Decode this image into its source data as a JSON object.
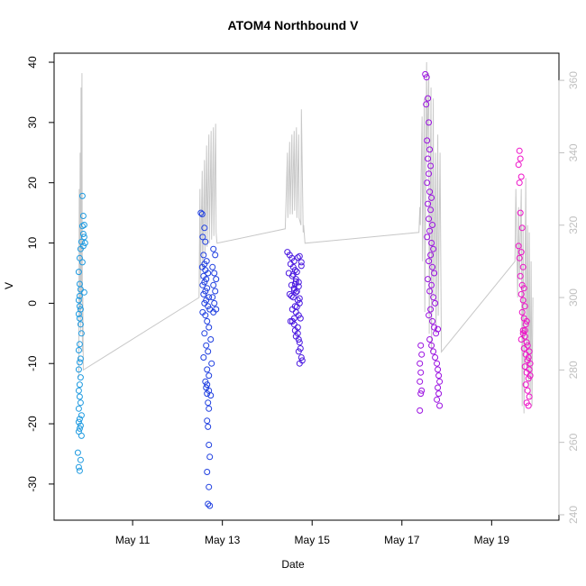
{
  "chart_data": {
    "type": "scatter",
    "title": "ATOM4 Northbound V",
    "xlabel": "Date",
    "ylabel": "V",
    "x_ticks": [
      "May 11",
      "May 13",
      "May 15",
      "May 17",
      "May 19"
    ],
    "x_tick_values": [
      11,
      13,
      15,
      17,
      19
    ],
    "xlim": [
      9.25,
      20.5
    ],
    "ylim": [
      -36,
      41.5
    ],
    "y_ticks": [
      -30,
      -20,
      -10,
      0,
      10,
      20,
      30,
      40
    ],
    "y2_ticks": [
      240,
      260,
      280,
      300,
      320,
      340,
      360
    ],
    "y2lim": [
      238.5,
      367.5
    ],
    "grid": false,
    "legend": "none",
    "colors": {
      "day1": "#1e9ae0",
      "day2": "#1f3fe0",
      "day3": "#4a18e0",
      "day4": "#9a10e0",
      "day5": "#ee10c8",
      "secondary_line": "#c8c8c8",
      "secondary_axis": "#c0c0c0"
    },
    "series": [
      {
        "color_key": "day1",
        "x": [
          9.82,
          9.8,
          9.84,
          9.78,
          9.86,
          9.8,
          9.82,
          9.84,
          9.8,
          9.82,
          9.86,
          9.8,
          9.84,
          9.82,
          9.8,
          9.82,
          9.84,
          9.8,
          9.82,
          9.84,
          9.8,
          9.82,
          9.86,
          9.84,
          9.82,
          9.8,
          9.84,
          9.82,
          9.8,
          9.82,
          9.84,
          9.82,
          9.8,
          9.82,
          9.84,
          9.86,
          9.88,
          9.9,
          9.92,
          9.88,
          9.9,
          9.92,
          9.9,
          9.94,
          9.88,
          9.92
        ],
        "y": [
          -27.8,
          -27.2,
          -26,
          -24.8,
          -22,
          -21.3,
          -20.8,
          -20.3,
          -19.7,
          -19.2,
          -18.6,
          -17.5,
          -16.5,
          -15.5,
          -14.5,
          -13.5,
          -12.3,
          -11,
          -9.8,
          -9.2,
          -7.8,
          -6.8,
          -5,
          -3.5,
          -2.5,
          -1.8,
          -1,
          -0.5,
          0.5,
          1.2,
          2.3,
          3.2,
          5.2,
          7.5,
          9,
          10.2,
          12.8,
          11.5,
          13,
          17.8,
          14.5,
          11,
          9.5,
          10,
          6.8,
          1.8
        ]
      },
      {
        "color_key": "day2",
        "x": [
          12.52,
          12.55,
          12.6,
          12.56,
          12.62,
          12.58,
          12.65,
          12.6,
          12.55,
          12.62,
          12.68,
          12.58,
          12.64,
          12.6,
          12.56,
          12.66,
          12.62,
          12.58,
          12.7,
          12.64,
          12.6,
          12.68,
          12.72,
          12.56,
          12.62,
          12.66,
          12.7,
          12.6,
          12.74,
          12.64,
          12.68,
          12.58,
          12.76,
          12.66,
          12.7,
          12.8,
          12.84,
          12.78,
          12.82,
          12.86,
          12.8,
          12.84,
          12.78,
          12.82,
          12.86,
          12.8,
          12.62,
          12.64,
          12.66,
          12.68,
          12.7,
          12.66,
          12.68,
          12.7,
          12.72,
          12.66,
          12.7,
          12.68,
          12.72,
          12.66,
          12.7,
          12.74
        ],
        "y": [
          15,
          14.8,
          12.5,
          11,
          10.2,
          8,
          7,
          6.5,
          6,
          5.5,
          5,
          4.5,
          4,
          3.5,
          3,
          2.5,
          2,
          1.5,
          1,
          0.5,
          0,
          -0.5,
          -1,
          -1.5,
          -2,
          -3,
          -4,
          -5,
          -6,
          -7,
          -8,
          -9,
          -10,
          -11,
          -12,
          9,
          8,
          6,
          5,
          4,
          3,
          2,
          1,
          0,
          -1,
          -1.5,
          -13,
          -14,
          -15,
          -16.5,
          -17.5,
          -19.5,
          -20.5,
          -23.5,
          -25.5,
          -28,
          -30.5,
          -33.3,
          -33.6,
          -13.5,
          -14.5,
          -15.3
        ]
      },
      {
        "color_key": "day3",
        "x": [
          14.45,
          14.5,
          14.55,
          14.6,
          14.52,
          14.58,
          14.62,
          14.48,
          14.56,
          14.64,
          14.7,
          14.54,
          14.6,
          14.66,
          14.5,
          14.58,
          14.68,
          14.72,
          14.62,
          14.56,
          14.64,
          14.7,
          14.74,
          14.52,
          14.6,
          14.68,
          14.58,
          14.66,
          14.62,
          14.7,
          14.54,
          14.72,
          14.76,
          14.64,
          14.6,
          14.66,
          14.62,
          14.68,
          14.64,
          14.7,
          14.72,
          14.74,
          14.7,
          14.76,
          14.78,
          14.72,
          14.56,
          14.6,
          14.64,
          14.68,
          14.72,
          14.76
        ],
        "y": [
          8.5,
          8,
          7.5,
          7,
          6.5,
          6,
          5.5,
          5,
          4.5,
          4,
          3.5,
          3,
          2.5,
          2,
          1.5,
          1,
          0.5,
          0,
          -0.5,
          -1,
          -1.5,
          -2,
          -2.5,
          -3,
          -3.5,
          -4,
          4.8,
          5.2,
          3.2,
          2.8,
          1.2,
          0.8,
          6.2,
          3.6,
          2.2,
          -0.6,
          -4.5,
          -5,
          -5.5,
          -6,
          -6.5,
          -7.5,
          -8,
          -9,
          -9.5,
          -10,
          -3,
          -2.5,
          1.8,
          7.6,
          7.8,
          6.8
        ]
      },
      {
        "color_key": "day4",
        "x": [
          17.52,
          17.55,
          17.58,
          17.54,
          17.6,
          17.56,
          17.62,
          17.58,
          17.64,
          17.6,
          17.56,
          17.62,
          17.66,
          17.58,
          17.64,
          17.6,
          17.68,
          17.62,
          17.56,
          17.66,
          17.7,
          17.64,
          17.6,
          17.68,
          17.72,
          17.58,
          17.66,
          17.62,
          17.7,
          17.74,
          17.64,
          17.6,
          17.68,
          17.72,
          17.76,
          17.62,
          17.66,
          17.7,
          17.74,
          17.78,
          17.8,
          17.82,
          17.84,
          17.8,
          17.82,
          17.78,
          17.84,
          17.8,
          17.4,
          17.42,
          17.44,
          17.4,
          17.42,
          17.4,
          17.44,
          17.42
        ],
        "y": [
          38,
          37.5,
          34,
          33,
          30,
          27,
          25.5,
          24,
          22.8,
          21.5,
          20,
          18.5,
          17.5,
          16.5,
          15.5,
          14,
          13,
          12,
          11,
          10,
          9,
          8,
          7,
          6,
          5,
          4,
          3,
          2,
          1,
          0,
          -1,
          -2,
          -3,
          -4,
          -5,
          -6,
          -7,
          -8,
          -9,
          -10,
          -11,
          -12,
          -13,
          -14,
          -15,
          -16,
          -17,
          -4.3,
          -17.8,
          -15,
          -14.5,
          -13,
          -11.5,
          -10,
          -8.5,
          -7
        ]
      },
      {
        "color_key": "day5",
        "x": [
          19.62,
          19.64,
          19.6,
          19.66,
          19.62,
          19.64,
          19.68,
          19.6,
          19.66,
          19.62,
          19.7,
          19.64,
          19.68,
          19.72,
          19.66,
          19.7,
          19.74,
          19.68,
          19.72,
          19.76,
          19.7,
          19.74,
          19.78,
          19.72,
          19.76,
          19.8,
          19.74,
          19.78,
          19.82,
          19.76,
          19.8,
          19.84,
          19.78,
          19.82,
          19.8,
          19.84,
          19.82,
          19.86,
          19.84,
          19.86,
          19.66,
          19.7,
          19.74,
          19.78
        ],
        "y": [
          25.3,
          24,
          23,
          21,
          20,
          15,
          12.5,
          9.5,
          8.5,
          7.5,
          6,
          4.5,
          3,
          2.5,
          1.5,
          0.5,
          -0.5,
          -1.5,
          -2.5,
          -3.5,
          -4.5,
          -5.5,
          -6.5,
          -7.5,
          -8.5,
          -9.5,
          -10.5,
          -11.5,
          -12.5,
          -13.5,
          -14.5,
          -15.5,
          -16.5,
          -17,
          -7,
          -8,
          -9,
          -10,
          -11,
          -12,
          -6,
          -5,
          -4.5,
          -3
        ]
      }
    ],
    "secondary_series": {
      "axis": "right",
      "x": [
        9.8,
        9.81,
        9.82,
        9.83,
        9.84,
        9.85,
        9.86,
        9.87,
        9.88,
        9.89,
        9.9,
        12.48,
        12.5,
        12.51,
        12.55,
        12.56,
        12.6,
        12.61,
        12.65,
        12.66,
        12.7,
        12.71,
        12.75,
        12.76,
        12.8,
        12.81,
        12.85,
        12.86,
        12.88,
        14.4,
        14.45,
        14.46,
        14.5,
        14.51,
        14.55,
        14.56,
        14.6,
        14.61,
        14.65,
        14.66,
        14.7,
        14.71,
        14.75,
        14.76,
        14.8,
        14.81,
        14.84,
        17.38,
        17.4,
        17.41,
        17.45,
        17.46,
        17.5,
        17.51,
        17.55,
        17.56,
        17.6,
        17.61,
        17.65,
        17.66,
        17.7,
        17.71,
        17.75,
        17.76,
        17.8,
        17.81,
        17.85,
        17.88,
        19.52,
        19.54,
        19.58,
        19.6,
        19.62,
        19.66,
        19.68,
        19.7,
        19.72,
        19.74,
        19.76,
        19.78,
        19.8,
        19.82,
        19.84,
        19.86,
        19.88,
        19.9,
        19.92
      ],
      "y": [
        278,
        330,
        295,
        340,
        290,
        358,
        300,
        362,
        285,
        300,
        280,
        300,
        330,
        305,
        335,
        308,
        338,
        312,
        342,
        314,
        345,
        315,
        346,
        316,
        347,
        317,
        348,
        318,
        315,
        319,
        340,
        322,
        343,
        323,
        345,
        323,
        346,
        324,
        347,
        322,
        345,
        322,
        320,
        352,
        318,
        320,
        315,
        318,
        325,
        320,
        350,
        310,
        355,
        296,
        365,
        340,
        362,
        290,
        358,
        285,
        355,
        300,
        340,
        290,
        345,
        295,
        340,
        285,
        310,
        330,
        300,
        325,
        305,
        330,
        270,
        320,
        268,
        300,
        333,
        280,
        320,
        275,
        318,
        272,
        310,
        270,
        300
      ]
    }
  }
}
